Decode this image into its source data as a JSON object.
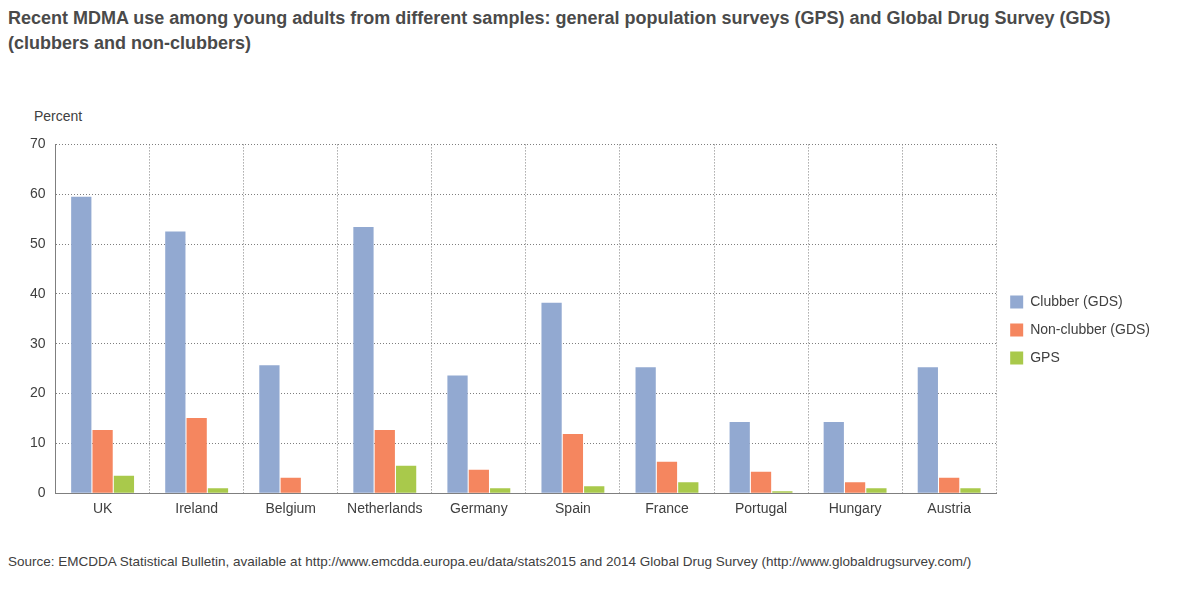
{
  "chart_data": {
    "type": "bar",
    "title": "Recent MDMA use among young adults from different samples: general population surveys (GPS) and Global Drug Survey (GDS) (clubbers and non-clubbers)",
    "y_label": "Percent",
    "source": "Source: EMCDDA Statistical Bulletin, available at http://www.emcdda.europa.eu/data/stats2015 and 2014 Global Drug Survey (http://www.globaldrugsurvey.com/)",
    "categories": [
      "UK",
      "Ireland",
      "Belgium",
      "Netherlands",
      "Germany",
      "Spain",
      "France",
      "Portugal",
      "Hungary",
      "Austria"
    ],
    "series": [
      {
        "name": "Clubber (GDS)",
        "color": "#92a9d1",
        "values": [
          59.5,
          52.5,
          25.7,
          53.4,
          23.6,
          38.2,
          25.3,
          14.3,
          14.3,
          25.3
        ]
      },
      {
        "name": "Non-clubber (GDS)",
        "color": "#f5865f",
        "values": [
          12.7,
          15.1,
          3.1,
          12.7,
          4.7,
          11.9,
          6.3,
          4.3,
          2.2,
          3.1
        ]
      },
      {
        "name": "GPS",
        "color": "#a9c94b",
        "values": [
          3.5,
          1.0,
          null,
          5.5,
          1.0,
          1.4,
          2.2,
          0.4,
          1.0,
          1.0
        ]
      }
    ],
    "ylim": [
      0,
      70
    ],
    "yticks": [
      0,
      10,
      20,
      30,
      40,
      50,
      60,
      70
    ],
    "grid": true,
    "legend": "right"
  }
}
